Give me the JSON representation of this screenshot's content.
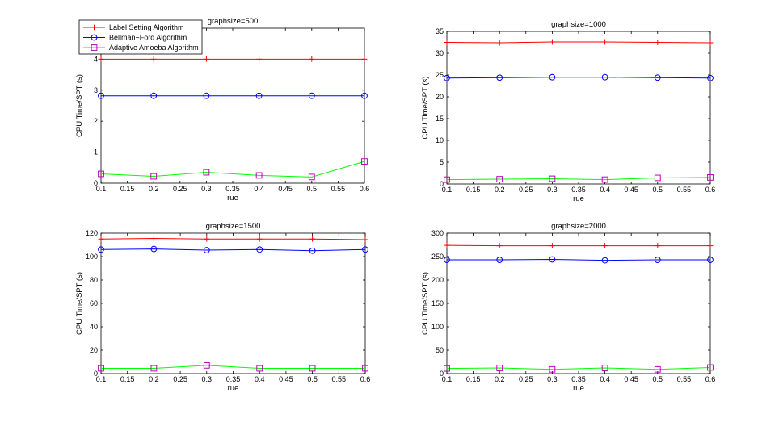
{
  "legend": {
    "entries": [
      {
        "label": "Label Setting Algorithm",
        "color": "#ff0000",
        "marker": "plus"
      },
      {
        "label": "Bellman−Ford Algorithm",
        "color": "#0000ff",
        "marker": "circle"
      },
      {
        "label": "Adaptive Amoeba Algorithm",
        "color": "#00ff00",
        "marker": "square",
        "marker_color": "#bf00bf"
      }
    ]
  },
  "chart_data": [
    {
      "type": "line",
      "title": "graphsize=500",
      "xlabel": "rue",
      "ylabel": "CPU Time/SPT (s)",
      "x": [
        0.1,
        0.2,
        0.3,
        0.4,
        0.5,
        0.6
      ],
      "xlim": [
        0.1,
        0.6
      ],
      "xticks": [
        0.1,
        0.15,
        0.2,
        0.25,
        0.3,
        0.35,
        0.4,
        0.45,
        0.5,
        0.55,
        0.6
      ],
      "xtick_labels": [
        "0.1",
        "0.15",
        "0.2",
        "0.25",
        "0.3",
        "0.35",
        "0.4",
        "0.45",
        "0.5",
        "0.55",
        "0.6"
      ],
      "ylim": [
        0,
        5
      ],
      "yticks": [
        0,
        1,
        2,
        3,
        4
      ],
      "ytick_labels": [
        "0",
        "1",
        "2",
        "3",
        "4"
      ],
      "series": [
        {
          "name": "Label Setting Algorithm",
          "values": [
            4.0,
            4.0,
            4.0,
            4.0,
            4.0,
            4.0
          ]
        },
        {
          "name": "Bellman−Ford Algorithm",
          "values": [
            2.82,
            2.82,
            2.82,
            2.82,
            2.82,
            2.82
          ]
        },
        {
          "name": "Adaptive Amoeba Algorithm",
          "values": [
            0.3,
            0.22,
            0.35,
            0.25,
            0.2,
            0.7
          ]
        }
      ]
    },
    {
      "type": "line",
      "title": "graphsize=1000",
      "xlabel": "rue",
      "ylabel": "CPU Time/SPT (s)",
      "x": [
        0.1,
        0.2,
        0.3,
        0.4,
        0.5,
        0.6
      ],
      "xlim": [
        0.1,
        0.6
      ],
      "xticks": [
        0.1,
        0.15,
        0.2,
        0.25,
        0.3,
        0.35,
        0.4,
        0.45,
        0.5,
        0.55,
        0.6
      ],
      "xtick_labels": [
        "0.1",
        "0.15",
        "0.2",
        "0.25",
        "0.3",
        "0.35",
        "0.4",
        "0.45",
        "0.5",
        "0.55",
        "0.6"
      ],
      "ylim": [
        0,
        35
      ],
      "yticks": [
        0,
        5,
        10,
        15,
        20,
        25,
        30,
        35
      ],
      "ytick_labels": [
        "0",
        "5",
        "10",
        "15",
        "20",
        "25",
        "30",
        "35"
      ],
      "series": [
        {
          "name": "Label Setting Algorithm",
          "values": [
            32.5,
            32.4,
            32.6,
            32.6,
            32.5,
            32.4
          ]
        },
        {
          "name": "Bellman−Ford Algorithm",
          "values": [
            24.3,
            24.4,
            24.5,
            24.5,
            24.4,
            24.3
          ]
        },
        {
          "name": "Adaptive Amoeba Algorithm",
          "values": [
            1.0,
            1.1,
            1.2,
            1.0,
            1.4,
            1.5
          ]
        }
      ]
    },
    {
      "type": "line",
      "title": "graphsize=1500",
      "xlabel": "rue",
      "ylabel": "CPU Time/SPT (s)",
      "x": [
        0.1,
        0.2,
        0.3,
        0.4,
        0.5,
        0.6
      ],
      "xlim": [
        0.1,
        0.6
      ],
      "xticks": [
        0.1,
        0.15,
        0.2,
        0.25,
        0.3,
        0.35,
        0.4,
        0.45,
        0.5,
        0.55,
        0.6
      ],
      "xtick_labels": [
        "0.1",
        "0.15",
        "0.2",
        "0.25",
        "0.3",
        "0.35",
        "0.4",
        "0.45",
        "0.5",
        "0.55",
        "0.6"
      ],
      "ylim": [
        0,
        120
      ],
      "yticks": [
        0,
        20,
        40,
        60,
        80,
        100,
        120
      ],
      "ytick_labels": [
        "0",
        "20",
        "40",
        "60",
        "80",
        "100",
        "120"
      ],
      "series": [
        {
          "name": "Label Setting Algorithm",
          "values": [
            115,
            115.5,
            115,
            115,
            115,
            114.5
          ]
        },
        {
          "name": "Bellman−Ford Algorithm",
          "values": [
            106,
            106.5,
            105.5,
            106,
            105,
            106
          ]
        },
        {
          "name": "Adaptive Amoeba Algorithm",
          "values": [
            4.5,
            4.5,
            7,
            4.5,
            4.5,
            4.5
          ]
        }
      ]
    },
    {
      "type": "line",
      "title": "graphsize=2000",
      "xlabel": "rue",
      "ylabel": "CPU Time/SPT (s)",
      "x": [
        0.1,
        0.2,
        0.3,
        0.4,
        0.5,
        0.6
      ],
      "xlim": [
        0.1,
        0.6
      ],
      "xticks": [
        0.1,
        0.15,
        0.2,
        0.25,
        0.3,
        0.35,
        0.4,
        0.45,
        0.5,
        0.55,
        0.6
      ],
      "xtick_labels": [
        "0.1",
        "0.15",
        "0.2",
        "0.25",
        "0.3",
        "0.35",
        "0.4",
        "0.45",
        "0.5",
        "0.55",
        "0.6"
      ],
      "ylim": [
        0,
        300
      ],
      "yticks": [
        0,
        50,
        100,
        150,
        200,
        250,
        300
      ],
      "ytick_labels": [
        "0",
        "50",
        "100",
        "150",
        "200",
        "250",
        "300"
      ],
      "series": [
        {
          "name": "Label Setting Algorithm",
          "values": [
            274,
            273,
            273,
            273,
            273,
            273
          ]
        },
        {
          "name": "Bellman−Ford Algorithm",
          "values": [
            243,
            243,
            244,
            242,
            243,
            243
          ]
        },
        {
          "name": "Adaptive Amoeba Algorithm",
          "values": [
            11,
            12,
            9,
            12,
            9,
            13
          ]
        }
      ]
    }
  ]
}
